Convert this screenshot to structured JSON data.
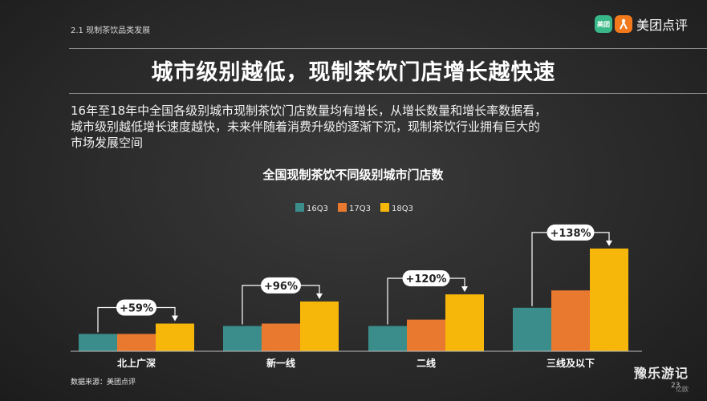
{
  "header": {
    "section_label": "2.1  现制茶饮品类发展",
    "brand_text": "美团点评",
    "brand_logo_text": "美团",
    "title": "城市级别越低，现制茶饮门店增长越快速"
  },
  "description": {
    "lines": [
      "16年至18年中全国各级别城市现制茶饮门店数量均有增长，从增长数量和增长率数据看，",
      "城市级别越低增长速度越快，未来伴随着消费升级的逐渐下沉，现制茶饮行业拥有巨大的",
      "市场发展空间"
    ]
  },
  "chart_data": {
    "type": "bar",
    "title": "全国现制茶饮不同级别城市门店数",
    "categories": [
      "北上广深",
      "新一线",
      "二线",
      "三线及以下"
    ],
    "series": [
      {
        "name": "16Q3",
        "color": "#3a8d8a",
        "values": [
          22,
          32,
          32,
          55
        ]
      },
      {
        "name": "17Q3",
        "color": "#e9792f",
        "values": [
          22,
          35,
          40,
          77
        ]
      },
      {
        "name": "18Q3",
        "color": "#f6b70a",
        "values": [
          35,
          63,
          72,
          130
        ]
      }
    ],
    "growth_labels": [
      "+59%",
      "+96%",
      "+120%",
      "+138%"
    ],
    "legend_position": "top-center",
    "ylim": [
      0,
      140
    ],
    "grid": false
  },
  "footer": {
    "source": "数据来源：美团点评",
    "page_number": "23",
    "watermark": "豫乐游记",
    "watermark_sub": "亿欧"
  }
}
